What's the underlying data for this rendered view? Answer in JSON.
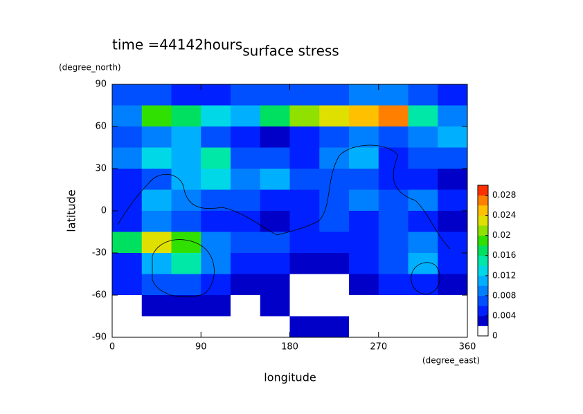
{
  "chart_data": {
    "type": "contour",
    "title": "surface stress",
    "annotation": "time =44142hours",
    "xlabel": "longitude",
    "ylabel": "latitude",
    "xunit": "(degree_east)",
    "yunit": "(degree_north)",
    "xlim": [
      0,
      360
    ],
    "xticks": [
      0,
      90,
      180,
      270,
      360
    ],
    "ylim": [
      -90,
      90
    ],
    "yticks": [
      -90,
      -60,
      -30,
      0,
      30,
      60,
      90
    ],
    "x": [
      15,
      45,
      75,
      105,
      135,
      165,
      195,
      225,
      255,
      285,
      315,
      345
    ],
    "y": [
      82.5,
      67.5,
      52.5,
      37.5,
      22.5,
      7.5,
      -7.5,
      -22.5,
      -37.5,
      -52.5,
      -67.5,
      -82.5
    ],
    "z": [
      [
        0.006,
        0.006,
        0.005,
        0.005,
        0.006,
        0.006,
        0.006,
        0.007,
        0.008,
        0.008,
        0.006,
        0.004
      ],
      [
        0.008,
        0.018,
        0.016,
        0.012,
        0.01,
        0.016,
        0.02,
        0.022,
        0.024,
        0.026,
        0.014,
        0.008
      ],
      [
        0.006,
        0.008,
        0.01,
        0.006,
        0.004,
        0.002,
        0.004,
        0.006,
        0.008,
        0.006,
        0.008,
        0.01
      ],
      [
        0.008,
        0.012,
        0.01,
        0.014,
        0.006,
        0.006,
        0.004,
        0.008,
        0.01,
        0.004,
        0.006,
        0.006
      ],
      [
        0.004,
        0.006,
        0.01,
        0.012,
        0.008,
        0.01,
        0.006,
        0.006,
        0.006,
        0.004,
        0.004,
        0.002
      ],
      [
        0.004,
        0.01,
        0.008,
        0.006,
        0.006,
        0.004,
        0.004,
        0.006,
        0.008,
        0.006,
        0.008,
        0.004
      ],
      [
        0.004,
        0.008,
        0.006,
        0.004,
        0.004,
        0.002,
        0.004,
        0.006,
        0.004,
        0.006,
        0.004,
        0.002
      ],
      [
        0.016,
        0.022,
        0.018,
        0.008,
        0.006,
        0.006,
        0.004,
        0.004,
        0.004,
        0.006,
        0.008,
        0.004
      ],
      [
        0.004,
        0.01,
        0.014,
        0.008,
        0.004,
        0.004,
        0.002,
        0.002,
        0.004,
        0.006,
        0.01,
        0.004
      ],
      [
        0.004,
        0.006,
        0.006,
        0.004,
        0.002,
        0.002,
        0,
        0,
        0.002,
        0.004,
        0.004,
        0.002
      ],
      [
        0,
        0.002,
        0.002,
        0.002,
        0,
        0.002,
        0,
        0,
        0,
        0,
        0,
        0
      ],
      [
        0,
        0,
        0,
        0,
        0,
        0,
        0.002,
        0.002,
        0,
        0,
        0,
        0
      ]
    ],
    "clim": [
      0,
      0.03
    ],
    "cticks": [
      0,
      0.004,
      0.008,
      0.012,
      0.016,
      0.02,
      0.024,
      0.028
    ],
    "colors": [
      "#ffffff",
      "#0000c8",
      "#0020ff",
      "#0050ff",
      "#0080ff",
      "#00b0ff",
      "#00d8e8",
      "#00e8a8",
      "#00e060",
      "#30e000",
      "#90e000",
      "#e0e000",
      "#ffc000",
      "#ff8000",
      "#ff3000"
    ]
  }
}
